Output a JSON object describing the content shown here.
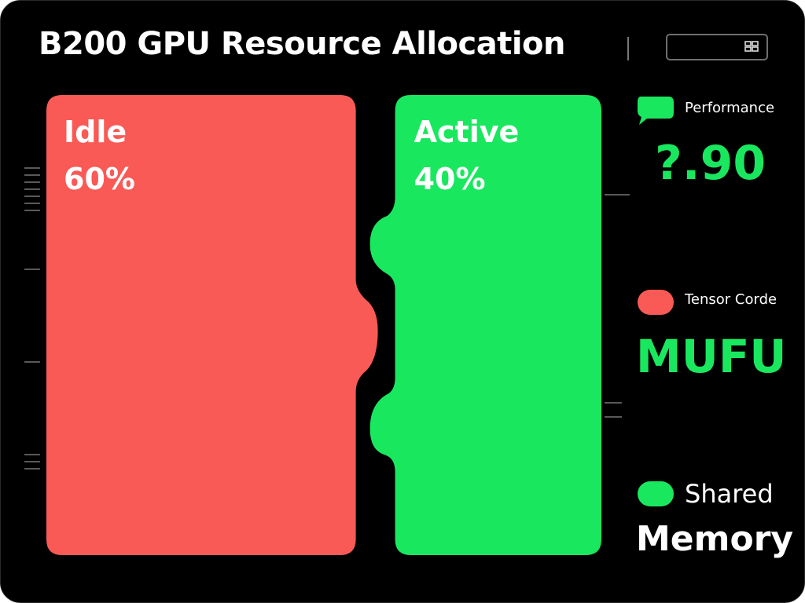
{
  "colors": {
    "background": "#000000",
    "idle": "#f95a55",
    "active": "#19e85f",
    "accent_green": "#19e85f",
    "text": "#ffffff",
    "tick": "#777777"
  },
  "chart_data": {
    "type": "bar",
    "title": "B200 GPU Resource Allocation",
    "unit": "%",
    "categories": [
      "Idle",
      "Active"
    ],
    "values": [
      60,
      40
    ],
    "value_labels": [
      "60%",
      "40%"
    ],
    "colors": [
      "#f95a55",
      "#19e85f"
    ]
  },
  "legend": {
    "items": [
      {
        "label": "Performance",
        "value": "?.90",
        "color": "#19e85f",
        "value_color": "#19e85f",
        "icon": "speech-bubble-icon"
      },
      {
        "label": "Tensor Corde",
        "value": "MUFU",
        "color": "#f95a55",
        "value_color": "#19e85f",
        "icon": "pill-icon"
      },
      {
        "label": "Shared",
        "value": "Memory",
        "color": "#19e85f",
        "value_color": "#ffffff",
        "icon": "pill-icon"
      }
    ]
  }
}
